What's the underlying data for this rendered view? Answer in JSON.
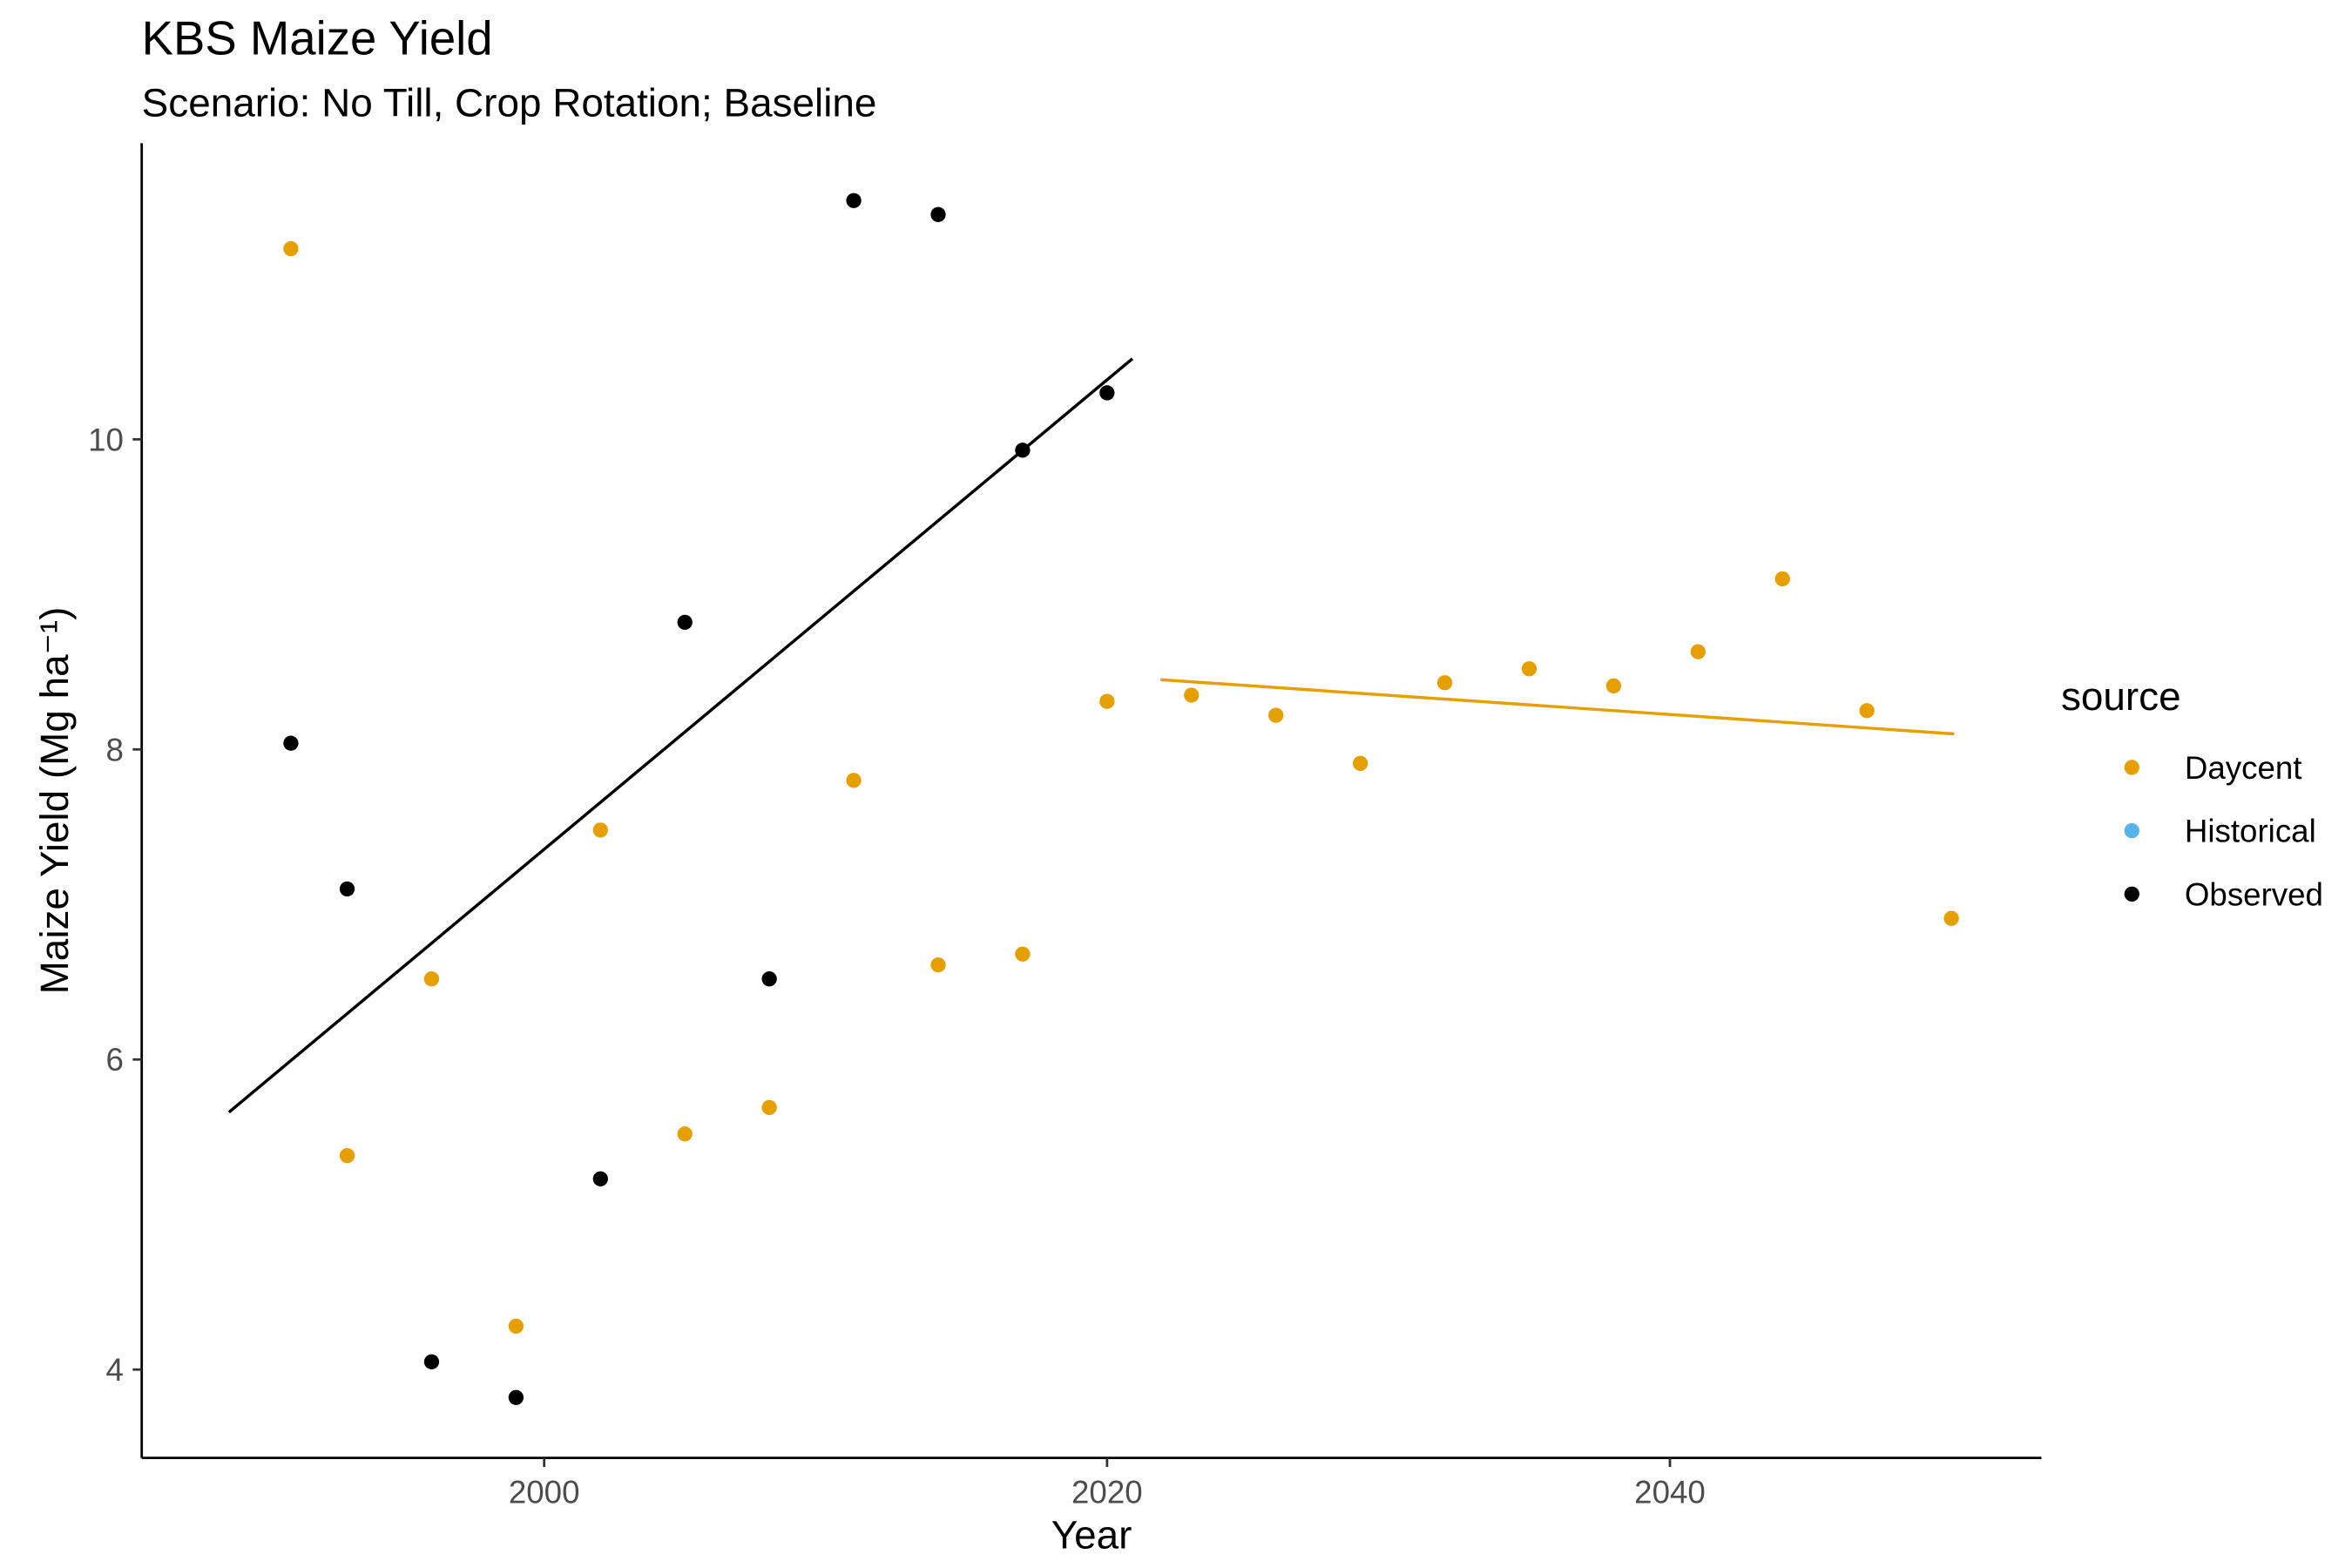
{
  "chart_data": {
    "type": "scatter",
    "title": "KBS Maize Yield",
    "subtitle": "Scenario: No Till, Crop Rotation; Baseline",
    "xlabel": "Year",
    "ylabel": "Maize Yield (Mg ha⁻¹)",
    "xlim": [
      1985.7,
      2053.2
    ],
    "ylim": [
      3.43,
      11.91
    ],
    "xticks": [
      2000,
      2020,
      2040
    ],
    "yticks": [
      4,
      6,
      8,
      10
    ],
    "grid": false,
    "legend": {
      "title": "source",
      "position": "right"
    },
    "series": [
      {
        "name": "Daycent",
        "color": "#E69F00",
        "x": [
          1991,
          1993,
          1996,
          1999,
          2002,
          2005,
          2008,
          2011,
          2014,
          2017,
          2020,
          2023,
          2026,
          2029,
          2032,
          2035,
          2038,
          2041,
          2044,
          2047,
          2050
        ],
        "y": [
          11.23,
          5.38,
          6.52,
          4.28,
          7.48,
          5.52,
          5.69,
          7.8,
          6.61,
          6.68,
          8.31,
          8.35,
          8.22,
          7.91,
          8.43,
          8.52,
          8.41,
          8.63,
          9.1,
          8.25,
          6.91
        ],
        "trend": {
          "x": [
            2021.9,
            2050.1
          ],
          "y": [
            8.45,
            8.1
          ]
        }
      },
      {
        "name": "Historical",
        "color": "#56B4E9",
        "x": [],
        "y": []
      },
      {
        "name": "Observed",
        "color": "#000000",
        "x": [
          1991,
          1993,
          1996,
          1999,
          2002,
          2005,
          2008,
          2011,
          2014,
          2017,
          2020
        ],
        "y": [
          8.04,
          7.1,
          4.05,
          3.82,
          5.23,
          8.82,
          6.52,
          11.54,
          11.45,
          9.93,
          10.3
        ],
        "trend": {
          "x": [
            1988.8,
            2020.9
          ],
          "y": [
            5.66,
            10.52
          ]
        }
      }
    ]
  }
}
